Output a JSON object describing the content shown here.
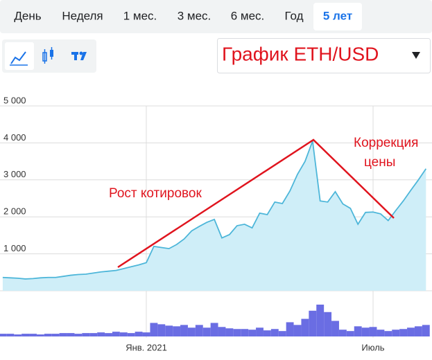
{
  "tabs": [
    "День",
    "Неделя",
    "1 мес.",
    "3 мес.",
    "6 мес.",
    "Год",
    "5 лет"
  ],
  "active_tab": 6,
  "chart_data": {
    "type": "area",
    "title": "График ETH/USD",
    "annotations": [
      "Рост котировок",
      "Коррекция",
      "цены"
    ],
    "categories": [
      null,
      null,
      null,
      null,
      null,
      null,
      null,
      null,
      null,
      null,
      null,
      null,
      null,
      null,
      null,
      null,
      null,
      null,
      null,
      "Янв. 2021",
      null,
      null,
      null,
      null,
      null,
      null,
      null,
      null,
      null,
      null,
      null,
      null,
      null,
      null,
      null,
      null,
      null,
      null,
      null,
      null,
      null,
      null,
      null,
      null,
      null,
      null,
      null,
      null,
      null,
      "Июль",
      null,
      null,
      null,
      null,
      null,
      null,
      null
    ],
    "values": [
      360,
      350,
      340,
      320,
      330,
      350,
      360,
      360,
      390,
      420,
      440,
      450,
      480,
      510,
      530,
      550,
      600,
      650,
      700,
      760,
      1200,
      1170,
      1140,
      1250,
      1400,
      1620,
      1740,
      1850,
      1930,
      1430,
      1520,
      1760,
      1800,
      1700,
      2100,
      2060,
      2400,
      2360,
      2700,
      3150,
      3500,
      4050,
      2430,
      2400,
      2680,
      2350,
      2230,
      1800,
      2120,
      2130,
      2080,
      1900,
      2170,
      2430,
      2720,
      3000,
      3300
    ],
    "volume": [
      4,
      4,
      3,
      4,
      4,
      3,
      4,
      4,
      5,
      5,
      4,
      5,
      5,
      6,
      5,
      7,
      6,
      5,
      7,
      6,
      20,
      18,
      16,
      15,
      17,
      13,
      17,
      13,
      20,
      14,
      12,
      11,
      11,
      10,
      13,
      9,
      11,
      8,
      21,
      17,
      26,
      38,
      47,
      36,
      23,
      10,
      8,
      15,
      13,
      14,
      10,
      8,
      10,
      11,
      13,
      15,
      17
    ],
    "color": "#4db6d9",
    "fill": "#cfeef8",
    "volume_color": "#6a6de3",
    "ylim": [
      0,
      5000
    ],
    "yticks": [
      0,
      {
        "value": 1000,
        "label": "1 000"
      },
      {
        "value": 2000,
        "label": "2 000"
      },
      {
        "value": 3000,
        "label": "3 000"
      },
      {
        "value": 4000,
        "label": "4 000"
      },
      {
        "value": 5000,
        "label": "5 000"
      }
    ],
    "grid": true
  }
}
